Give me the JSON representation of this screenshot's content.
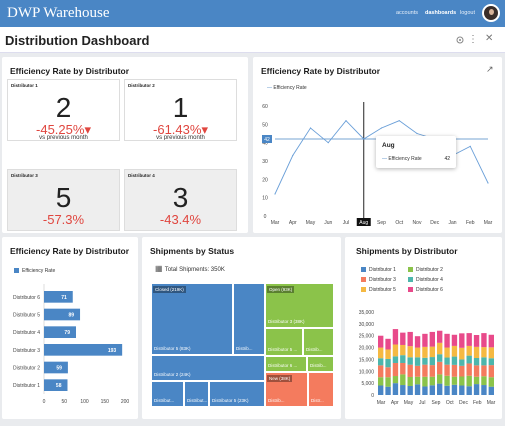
{
  "app": {
    "brand": "DWP Warehouse",
    "nav": [
      "accounts",
      "dashboards",
      "logout"
    ]
  },
  "page": {
    "title": "Distribution Dashboard"
  },
  "kpi": {
    "title": "Efficiency Rate by Distributor",
    "cells": [
      {
        "label": "Distributor 1",
        "value": "2",
        "change": "-45.25%",
        "note": "vs previous month"
      },
      {
        "label": "Distributor 2",
        "value": "1",
        "change": "-61.43%",
        "note": "vs previous month"
      },
      {
        "label": "Distributor 3",
        "value": "5",
        "change": "-57.3%",
        "note": ""
      },
      {
        "label": "Distributor 4",
        "value": "3",
        "change": "-43.4%",
        "note": ""
      }
    ]
  },
  "line_chart": {
    "title": "Efficiency Rate by Distributor",
    "legend": "Efficiency Rate",
    "tooltip": {
      "month": "Aug",
      "series": "Efficiency Rate",
      "value": "42"
    },
    "reference_label": "42"
  },
  "bar_chart": {
    "title": "Efficiency Rate by Distributor",
    "legend": "Efficiency Rate"
  },
  "treemap": {
    "title": "Shipments by Status",
    "total_label": "Total Shipments: 350K",
    "tiles": [
      {
        "label": "Closed (219K)",
        "color": "#4a86c5"
      },
      {
        "label": "Distributor 5 (83K)",
        "color": "#4a86c5"
      },
      {
        "label": "Distrib...",
        "color": "#4a86c5"
      },
      {
        "label": "Distributor 2 (24K)",
        "color": "#4a86c5"
      },
      {
        "label": "Distribut...",
        "color": "#4a86c5"
      },
      {
        "label": "Distribut...",
        "color": "#4a86c5"
      },
      {
        "label": "Distributor 5 (23K)",
        "color": "#4a86c5"
      },
      {
        "label": "Open (93K)",
        "color": "#8bc34a"
      },
      {
        "label": "Distributor 3 (38K)",
        "color": "#8bc34a"
      },
      {
        "label": "Distributor 5 ...",
        "color": "#8bc34a"
      },
      {
        "label": "Distrib...",
        "color": "#8bc34a"
      },
      {
        "label": "Distributor 6 ...",
        "color": "#8bc34a"
      },
      {
        "label": "Distrib...",
        "color": "#8bc34a"
      },
      {
        "label": "New (38K)",
        "color": "#f47b5e"
      },
      {
        "label": "Distrib...",
        "color": "#f47b5e"
      },
      {
        "label": "Distr...",
        "color": "#f47b5e"
      }
    ]
  },
  "stacked": {
    "title": "Shipments by Distributor",
    "legend": [
      {
        "name": "Distributor 1",
        "color": "#4a86c5"
      },
      {
        "name": "Distributor 2",
        "color": "#8bc34a"
      },
      {
        "name": "Distributor 3",
        "color": "#f47b5e"
      },
      {
        "name": "Distributor 4",
        "color": "#4db6ac"
      },
      {
        "name": "Distributor 5",
        "color": "#f5b942"
      },
      {
        "name": "Distributor 6",
        "color": "#e84a8a"
      }
    ]
  },
  "chart_data": [
    {
      "type": "line",
      "title": "Efficiency Rate by Distributor",
      "x": [
        "Mar",
        "Apr",
        "May",
        "Jun",
        "Jul",
        "Aug",
        "Sep",
        "Oct",
        "Nov",
        "Dec",
        "Jan",
        "Feb",
        "Mar"
      ],
      "series": [
        {
          "name": "Efficiency Rate",
          "values": [
            12,
            33,
            48,
            40,
            52,
            42,
            48,
            52,
            45,
            42,
            33,
            38,
            18
          ]
        }
      ],
      "ylim": [
        0,
        60
      ],
      "yticks": [
        0,
        10,
        20,
        30,
        40,
        42,
        50,
        60
      ],
      "reference_line": 42
    },
    {
      "type": "bar",
      "orientation": "horizontal",
      "title": "Efficiency Rate by Distributor",
      "categories": [
        "Distributor 6",
        "Distributor 5",
        "Distributor 4",
        "Distributor 3",
        "Distributor 2",
        "Distributor 1"
      ],
      "series": [
        {
          "name": "Efficiency Rate",
          "values": [
            71,
            89,
            79,
            193,
            59,
            58
          ]
        }
      ],
      "xlim": [
        0,
        200
      ],
      "xticks": [
        0,
        50,
        100,
        150,
        200
      ]
    },
    {
      "type": "bar",
      "stacked": true,
      "title": "Shipments by Distributor",
      "x_ticks": [
        "Mar",
        "Apr",
        "May",
        "Jul",
        "Sep",
        "Oct",
        "Dec",
        "Feb",
        "Mar"
      ],
      "ylim": [
        0,
        35000
      ],
      "yticks": [
        "0",
        "5,000",
        "10,000",
        "15,000",
        "20,000",
        "25,000",
        "30,000",
        "35,000"
      ],
      "series": [
        {
          "name": "Distributor 1",
          "values": [
            4000,
            3500,
            5000,
            4200,
            3800,
            4500,
            3600,
            4100,
            4800,
            3900,
            4300,
            4000,
            3700,
            4600,
            4200,
            3500
          ]
        },
        {
          "name": "Distributor 2",
          "values": [
            3500,
            4000,
            3000,
            4500,
            3800,
            3200,
            4100,
            3600,
            3900,
            4200,
            3400,
            3800,
            4400,
            3100,
            3700,
            4000
          ]
        },
        {
          "name": "Distributor 3",
          "values": [
            5000,
            4200,
            5500,
            4800,
            5200,
            4600,
            5100,
            4900,
            5300,
            4700,
            5000,
            4500,
            5200,
            4800,
            4600,
            5100
          ]
        },
        {
          "name": "Distributor 4",
          "values": [
            3000,
            3500,
            2800,
            3300,
            3100,
            3600,
            2900,
            3400,
            3200,
            3000,
            3500,
            2700,
            3300,
            3100,
            3400,
            2900
          ]
        },
        {
          "name": "Distributor 5",
          "values": [
            4500,
            4000,
            5000,
            4300,
            4700,
            4100,
            4600,
            4400,
            4800,
            4200,
            4500,
            4900,
            4100,
            4700,
            4300,
            4600
          ]
        },
        {
          "name": "Distributor 6",
          "values": [
            5000,
            4500,
            6500,
            5200,
            6000,
            4800,
            5500,
            6200,
            5100,
            5800,
            4700,
            6100,
            5400,
            5000,
            5900,
            5300
          ]
        }
      ]
    }
  ]
}
